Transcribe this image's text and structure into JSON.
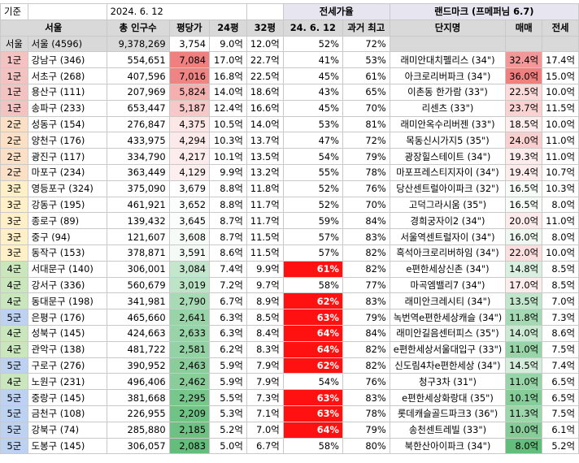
{
  "header": {
    "basis_label": "기준",
    "basis_date": "2024. 6. 12",
    "jeonse_ratio_label": "전세가율",
    "landmark_label": "랜드마크 (프메퍼님 6.7)",
    "col_seoul": "서울",
    "col_population": "총 인구수",
    "col_price_per_pyeong": "평당가",
    "col_24": "24평",
    "col_32": "32평",
    "col_ratio_date": "24. 6. 12",
    "col_ratio_max": "과거 최고",
    "col_complex": "단지명",
    "col_sale": "매매",
    "col_jeonse": "전세"
  },
  "summary_row": {
    "group": "서울",
    "district": "서울 (4596)",
    "population": "9,378,269",
    "price": "3,754",
    "p24": "9.0억",
    "p32": "12.0억",
    "ratio": "52%",
    "max": "72%"
  },
  "colors": {
    "g1": "#f3c3c2",
    "g2": "#fbe0c6",
    "g3": "#fff0c8",
    "g4": "#c9e6bd",
    "g5": "#bdd1f0",
    "highlight_red": "#ff1111"
  },
  "price_scale": {
    "min": 2083,
    "max": 7084
  },
  "landmark_scale": {
    "min": 8.0,
    "max": 36.0
  },
  "rows": [
    {
      "group": "1군",
      "district": "강남구 (346)",
      "population": "554,651",
      "price": "7,084",
      "p24": "17.0억",
      "p32": "22.7억",
      "ratio": "41%",
      "max": "53%",
      "complex": "래미안대치펠리스 (34\")",
      "sale": "32.4억",
      "jeonse": "17.4억",
      "sale_num": 32.4,
      "price_num": 7084
    },
    {
      "group": "1군",
      "district": "서초구 (268)",
      "population": "407,596",
      "price": "7,016",
      "p24": "16.8억",
      "p32": "22.5억",
      "ratio": "45%",
      "max": "61%",
      "complex": "아크로리버파크 (34\")",
      "sale": "36.0억",
      "jeonse": "15.0억",
      "sale_num": 36.0,
      "price_num": 7016
    },
    {
      "group": "1군",
      "district": "용산구 (111)",
      "population": "207,969",
      "price": "5,824",
      "p24": "14.0억",
      "p32": "18.6억",
      "ratio": "43%",
      "max": "65%",
      "complex": "이촌동 한가람 (33\")",
      "sale": "22.5억",
      "jeonse": "10.0억",
      "sale_num": 22.5,
      "price_num": 5824
    },
    {
      "group": "1군",
      "district": "송파구 (233)",
      "population": "653,447",
      "price": "5,187",
      "p24": "12.4억",
      "p32": "16.6억",
      "ratio": "45%",
      "max": "70%",
      "complex": "리센츠 (33\")",
      "sale": "23.7억",
      "jeonse": "11.5억",
      "sale_num": 23.7,
      "price_num": 5187
    },
    {
      "group": "2군",
      "district": "성동구 (154)",
      "population": "276,847",
      "price": "4,375",
      "p24": "10.5억",
      "p32": "14.0억",
      "ratio": "53%",
      "max": "81%",
      "complex": "래미안옥수리버젠 (33\")",
      "sale": "18.5억",
      "jeonse": "10.0억",
      "sale_num": 18.5,
      "price_num": 4375
    },
    {
      "group": "2군",
      "district": "양천구 (176)",
      "population": "433,975",
      "price": "4,294",
      "p24": "10.3억",
      "p32": "13.7억",
      "ratio": "47%",
      "max": "72%",
      "complex": "목동신시가지5 (35\")",
      "sale": "24.0억",
      "jeonse": "11.0억",
      "sale_num": 24.0,
      "price_num": 4294
    },
    {
      "group": "2군",
      "district": "광진구 (117)",
      "population": "334,790",
      "price": "4,217",
      "p24": "10.1억",
      "p32": "13.5억",
      "ratio": "54%",
      "max": "79%",
      "complex": "광장힐스테이트 (34\")",
      "sale": "19.3억",
      "jeonse": "11.0억",
      "sale_num": 19.3,
      "price_num": 4217
    },
    {
      "group": "2군",
      "district": "마포구 (234)",
      "population": "363,449",
      "price": "4,129",
      "p24": "9.9억",
      "p32": "13.2억",
      "ratio": "55%",
      "max": "78%",
      "complex": "마포프레스티지자이 (34\")",
      "sale": "19.4억",
      "jeonse": "10.7억",
      "sale_num": 19.4,
      "price_num": 4129
    },
    {
      "group": "3군",
      "district": "영등포구 (324)",
      "population": "375,090",
      "price": "3,679",
      "p24": "8.8억",
      "p32": "11.8억",
      "ratio": "52%",
      "max": "76%",
      "complex": "당산센트럴아이파크 (32\")",
      "sale": "16.5억",
      "jeonse": "10.3억",
      "sale_num": 16.5,
      "price_num": 3679
    },
    {
      "group": "3군",
      "district": "강동구 (195)",
      "population": "461,921",
      "price": "3,652",
      "p24": "8.8억",
      "p32": "11.7억",
      "ratio": "52%",
      "max": "70%",
      "complex": "고덕그라시움 (35\")",
      "sale": "16.5억",
      "jeonse": "8.0억",
      "sale_num": 16.5,
      "price_num": 3652
    },
    {
      "group": "3군",
      "district": "종로구 (89)",
      "population": "139,432",
      "price": "3,645",
      "p24": "8.7억",
      "p32": "11.7억",
      "ratio": "59%",
      "max": "84%",
      "complex": "경희궁자이2 (34\")",
      "sale": "20.0억",
      "jeonse": "11.0억",
      "sale_num": 20.0,
      "price_num": 3645
    },
    {
      "group": "3군",
      "district": "중구 (94)",
      "population": "121,607",
      "price": "3,608",
      "p24": "8.7억",
      "p32": "11.5억",
      "ratio": "57%",
      "max": "83%",
      "complex": "서울역센트럴자이 (34\")",
      "sale": "16.0억",
      "jeonse": "8.0억",
      "sale_num": 16.0,
      "price_num": 3608
    },
    {
      "group": "3군",
      "district": "동작구 (153)",
      "population": "378,871",
      "price": "3,591",
      "p24": "8.6억",
      "p32": "11.5억",
      "ratio": "57%",
      "max": "82%",
      "complex": "흑석아크로리버하임 (34\")",
      "sale": "22.0억",
      "jeonse": "10.0억",
      "sale_num": 22.0,
      "price_num": 3591
    },
    {
      "group": "4군",
      "district": "서대문구 (140)",
      "population": "306,001",
      "price": "3,084",
      "p24": "7.4억",
      "p32": "9.9억",
      "ratio": "61%",
      "max": "82%",
      "complex": "e편한세상신촌 (34\")",
      "sale": "14.8억",
      "jeonse": "8.5억",
      "sale_num": 14.8,
      "price_num": 3084,
      "ratio_hi": true
    },
    {
      "group": "4군",
      "district": "강서구 (336)",
      "population": "560,679",
      "price": "3,019",
      "p24": "7.2억",
      "p32": "9.7억",
      "ratio": "58%",
      "max": "77%",
      "complex": "마곡엠밸리7 (34\")",
      "sale": "17.0억",
      "jeonse": "8.5억",
      "sale_num": 17.0,
      "price_num": 3019
    },
    {
      "group": "4군",
      "district": "동대문구 (198)",
      "population": "341,981",
      "price": "2,790",
      "p24": "6.7억",
      "p32": "8.9억",
      "ratio": "62%",
      "max": "83%",
      "complex": "래미안크레시티 (34\")",
      "sale": "13.5억",
      "jeonse": "7.0억",
      "sale_num": 13.5,
      "price_num": 2790,
      "ratio_hi": true
    },
    {
      "group": "5군",
      "district": "은평구 (176)",
      "population": "465,660",
      "price": "2,641",
      "p24": "6.3억",
      "p32": "8.5억",
      "ratio": "63%",
      "max": "79%",
      "complex": "녹번역e편한세상캐슬 (34\")",
      "sale": "11.8억",
      "jeonse": "7.3억",
      "sale_num": 11.8,
      "price_num": 2641,
      "ratio_hi": true
    },
    {
      "group": "4군",
      "district": "성북구 (145)",
      "population": "424,663",
      "price": "2,633",
      "p24": "6.3억",
      "p32": "8.4억",
      "ratio": "64%",
      "max": "84%",
      "complex": "래미안길음센터피스 (35\")",
      "sale": "14.0억",
      "jeonse": "8.6억",
      "sale_num": 14.0,
      "price_num": 2633,
      "ratio_hi": true
    },
    {
      "group": "4군",
      "district": "관악구 (138)",
      "population": "481,722",
      "price": "2,581",
      "p24": "6.2억",
      "p32": "8.3억",
      "ratio": "64%",
      "max": "82%",
      "complex": "e편한세상서울대입구 (33\")",
      "sale": "11.0억",
      "jeonse": "7.5억",
      "sale_num": 11.0,
      "price_num": 2581,
      "ratio_hi": true
    },
    {
      "group": "5군",
      "district": "구로구 (276)",
      "population": "390,952",
      "price": "2,463",
      "p24": "5.9억",
      "p32": "7.9억",
      "ratio": "62%",
      "max": "82%",
      "complex": "신도림4차e편한세상 (34\")",
      "sale": "14.5억",
      "jeonse": "7.4억",
      "sale_num": 14.5,
      "price_num": 2463,
      "ratio_hi": true
    },
    {
      "group": "4군",
      "district": "노원구 (231)",
      "population": "496,406",
      "price": "2,462",
      "p24": "5.9억",
      "p32": "7.9억",
      "ratio": "54%",
      "max": "76%",
      "complex": "청구3차 (31\")",
      "sale": "11.0억",
      "jeonse": "6.5억",
      "sale_num": 11.0,
      "price_num": 2462
    },
    {
      "group": "5군",
      "district": "중랑구 (145)",
      "population": "381,668",
      "price": "2,295",
      "p24": "5.5억",
      "p32": "7.3억",
      "ratio": "63%",
      "max": "83%",
      "complex": "e편한세상화랑대 (35\")",
      "sale": "10.1억",
      "jeonse": "6.5억",
      "sale_num": 10.1,
      "price_num": 2295,
      "ratio_hi": true
    },
    {
      "group": "5군",
      "district": "금천구 (108)",
      "population": "226,955",
      "price": "2,209",
      "p24": "5.3억",
      "p32": "7.1억",
      "ratio": "63%",
      "max": "78%",
      "complex": "롯데캐슬골드파크3 (36\")",
      "sale": "11.3억",
      "jeonse": "7.5억",
      "sale_num": 11.3,
      "price_num": 2209,
      "ratio_hi": true
    },
    {
      "group": "5군",
      "district": "강북구 (74)",
      "population": "285,880",
      "price": "2,185",
      "p24": "5.2억",
      "p32": "7.0억",
      "ratio": "64%",
      "max": "79%",
      "complex": "송천센트레빌 (33\")",
      "sale": "10.0억",
      "jeonse": "6.1억",
      "sale_num": 10.0,
      "price_num": 2185,
      "ratio_hi": true
    },
    {
      "group": "5군",
      "district": "도봉구 (145)",
      "population": "306,057",
      "price": "2,083",
      "p24": "5.0억",
      "p32": "6.7억",
      "ratio": "58%",
      "max": "80%",
      "complex": "북한산아이파크 (34\")",
      "sale": "8.0억",
      "jeonse": "5.2억",
      "sale_num": 8.0,
      "price_num": 2083
    }
  ]
}
